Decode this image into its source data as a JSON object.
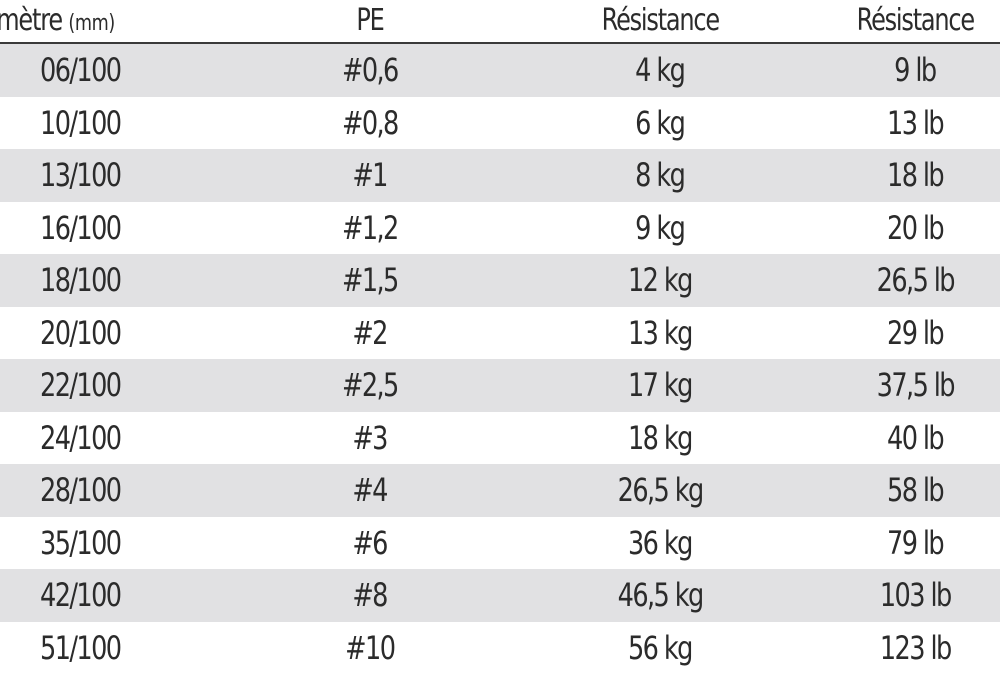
{
  "table": {
    "headers": {
      "diameter": "Diamètre",
      "diameter_unit": "(mm)",
      "pe": "PE",
      "resistance_kg": "Résistance",
      "resistance_lb": "Résistance"
    },
    "rows": [
      {
        "diameter": "06/100",
        "pe": "#0,6",
        "kg": "4 kg",
        "lb": "9 lb"
      },
      {
        "diameter": "10/100",
        "pe": "#0,8",
        "kg": "6 kg",
        "lb": "13 lb"
      },
      {
        "diameter": "13/100",
        "pe": "#1",
        "kg": "8 kg",
        "lb": "18 lb"
      },
      {
        "diameter": "16/100",
        "pe": "#1,2",
        "kg": "9 kg",
        "lb": "20 lb"
      },
      {
        "diameter": "18/100",
        "pe": "#1,5",
        "kg": "12 kg",
        "lb": "26,5 lb"
      },
      {
        "diameter": "20/100",
        "pe": "#2",
        "kg": "13 kg",
        "lb": "29 lb"
      },
      {
        "diameter": "22/100",
        "pe": "#2,5",
        "kg": "17 kg",
        "lb": "37,5 lb"
      },
      {
        "diameter": "24/100",
        "pe": "#3",
        "kg": "18 kg",
        "lb": "40 lb"
      },
      {
        "diameter": "28/100",
        "pe": "#4",
        "kg": "26,5 kg",
        "lb": "58 lb"
      },
      {
        "diameter": "35/100",
        "pe": "#6",
        "kg": "36 kg",
        "lb": "79 lb"
      },
      {
        "diameter": "42/100",
        "pe": "#8",
        "kg": "46,5 kg",
        "lb": "103 lb"
      },
      {
        "diameter": "51/100",
        "pe": "#10",
        "kg": "56 kg",
        "lb": "123 lb"
      }
    ]
  },
  "colors": {
    "row_shade": "#e1e1e3",
    "text": "#2b2b2b",
    "rule": "#3a3a3a"
  }
}
